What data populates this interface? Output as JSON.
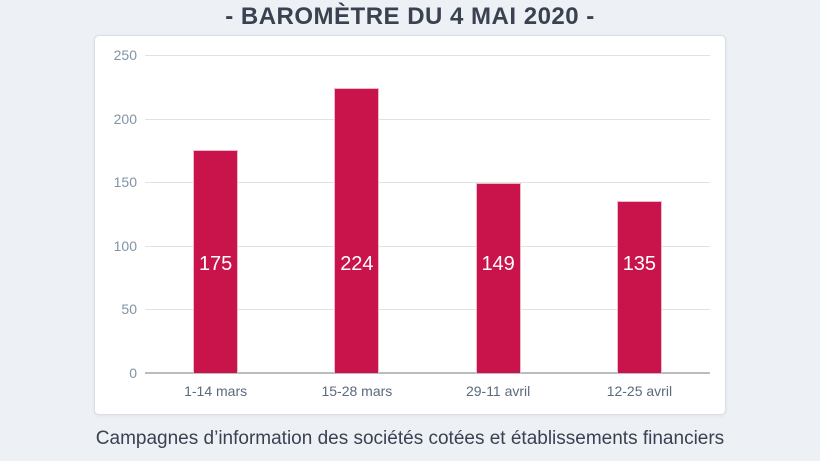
{
  "page": {
    "background_color": "#edf1f6",
    "title": "- BAROMÈTRE DU 4 MAI 2020 -",
    "caption": "Campagnes d’information des sociétés cotées et établissements financiers"
  },
  "chart_data": {
    "type": "bar",
    "title": "",
    "xlabel": "",
    "ylabel": "",
    "categories": [
      "1-14 mars",
      "15-28 mars",
      "29-11 avril",
      "12-25 avril"
    ],
    "values": [
      175,
      224,
      149,
      135
    ],
    "value_labels": [
      "175",
      "224",
      "149",
      "135"
    ],
    "ylim": [
      0,
      250
    ],
    "yticks": [
      0,
      50,
      100,
      150,
      200,
      250
    ],
    "grid": true,
    "legend_position": "none",
    "bar_color": "#c9134b",
    "bar_border_color": "#eeb9ca",
    "bar_label_color": "#ffffff",
    "gridline_color": "#e2e2e2",
    "axis_line_color": "#b9bcc0",
    "ytick_color": "#8193a7",
    "xtick_color": "#5b6a7c"
  }
}
